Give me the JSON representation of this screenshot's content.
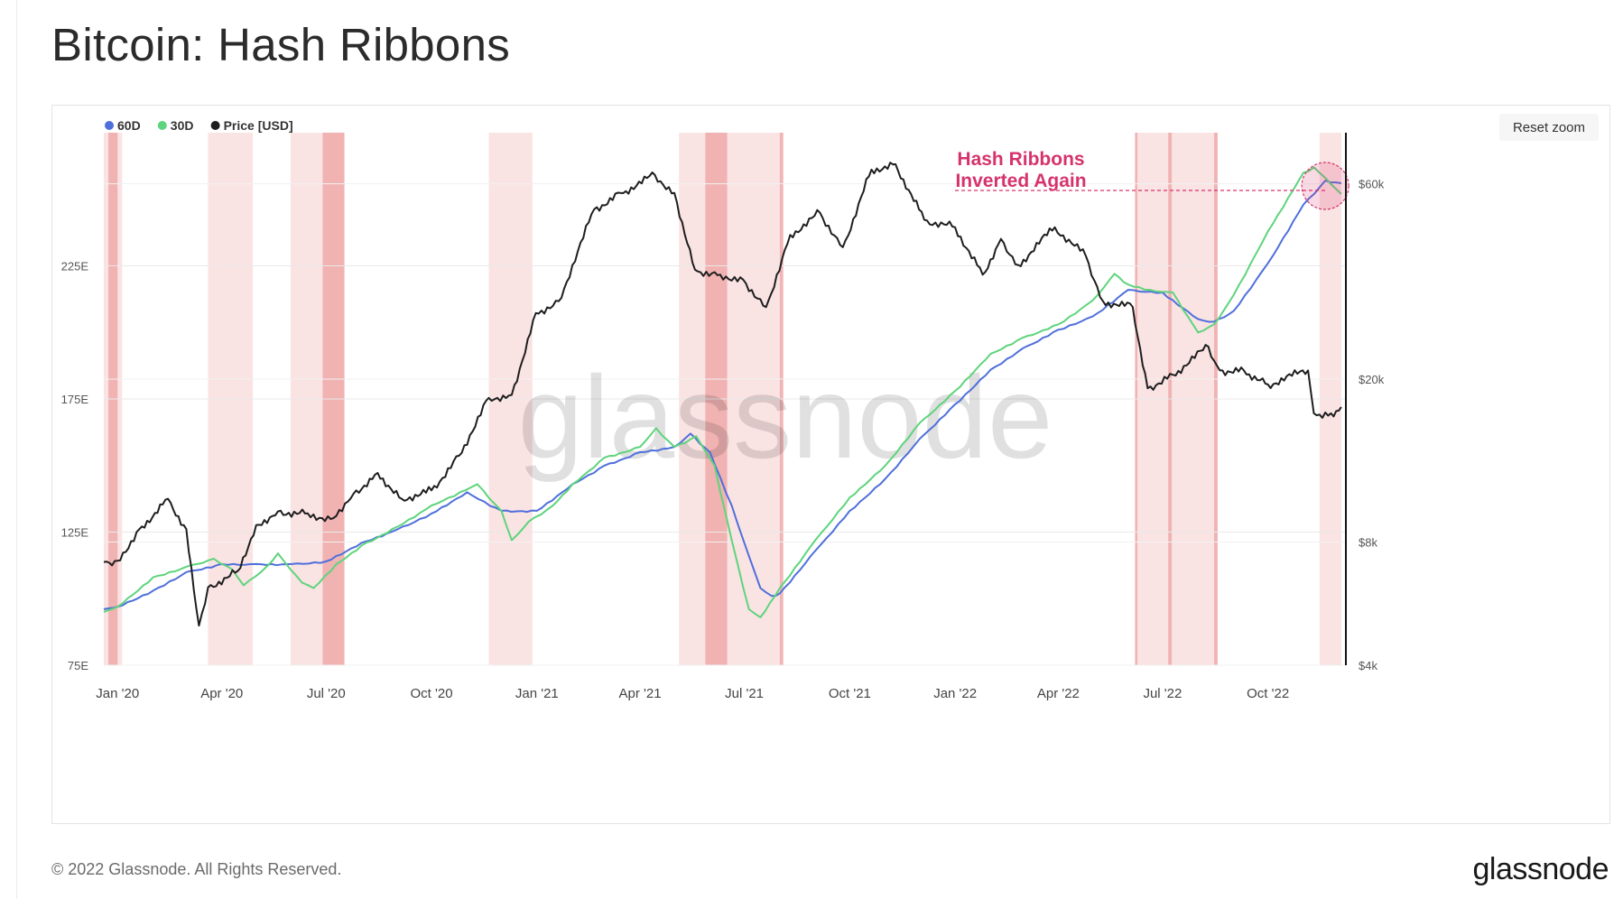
{
  "title": "Bitcoin: Hash Ribbons",
  "reset_zoom_label": "Reset zoom",
  "footer": {
    "copyright": "© 2022 Glassnode. All Rights Reserved.",
    "logo_text": "glassnode"
  },
  "watermark": "glassnode",
  "colors": {
    "series_60d": "#4f6fdb",
    "series_30d": "#5ed47c",
    "price": "#1e1e1e",
    "shading": "#f9dcdc",
    "shading_dark": "#efa9a9",
    "annotation": "#d6336c"
  },
  "chart_data": {
    "type": "line",
    "legend": {
      "placement": "top-left",
      "items": [
        {
          "label": "60D",
          "color": "#4f6fdb"
        },
        {
          "label": "30D",
          "color": "#5ed47c"
        },
        {
          "label": "Price [USD]",
          "color": "#1e1e1e"
        }
      ]
    },
    "x_ticks": [
      "Jan '20",
      "Apr '20",
      "Jul '20",
      "Oct '20",
      "Jan '21",
      "Apr '21",
      "Jul '21",
      "Oct '21",
      "Jan '22",
      "Apr '22",
      "Jul '22",
      "Oct '22"
    ],
    "x_range": [
      "2019-12-20",
      "2022-12-08"
    ],
    "y_left": {
      "ticks": [
        "75E",
        "125E",
        "175E",
        "225E"
      ],
      "values": [
        75,
        125,
        175,
        225
      ],
      "range": [
        75,
        275
      ],
      "unit": "EH/s"
    },
    "y_right": {
      "scale": "log",
      "ticks": [
        "$4k",
        "$8k",
        "$20k",
        "$60k"
      ],
      "values": [
        4000,
        8000,
        20000,
        60000
      ],
      "range": [
        4000,
        80000
      ]
    },
    "annotation": {
      "text_line1": "Hash Ribbons",
      "text_line2": "Inverted Again",
      "date": "2022-11-20",
      "value": 255
    },
    "capitulation_periods": [
      {
        "start": "2019-12-20",
        "end": "2020-01-05",
        "dark": false
      },
      {
        "start": "2019-12-24",
        "end": "2020-01-01",
        "dark": true
      },
      {
        "start": "2020-03-20",
        "end": "2020-04-28",
        "dark": false
      },
      {
        "start": "2020-05-31",
        "end": "2020-07-17",
        "dark": false
      },
      {
        "start": "2020-06-28",
        "end": "2020-07-17",
        "dark": true
      },
      {
        "start": "2020-11-20",
        "end": "2020-12-28",
        "dark": false
      },
      {
        "start": "2021-05-05",
        "end": "2021-08-02",
        "dark": false
      },
      {
        "start": "2021-05-28",
        "end": "2021-06-16",
        "dark": true
      },
      {
        "start": "2021-08-01",
        "end": "2021-08-04",
        "dark": true
      },
      {
        "start": "2022-06-07",
        "end": "2022-08-18",
        "dark": false
      },
      {
        "start": "2022-06-07",
        "end": "2022-06-09",
        "dark": true
      },
      {
        "start": "2022-07-06",
        "end": "2022-07-09",
        "dark": true
      },
      {
        "start": "2022-08-15",
        "end": "2022-08-18",
        "dark": true
      },
      {
        "start": "2022-11-15",
        "end": "2022-12-04",
        "dark": false
      }
    ],
    "series": [
      {
        "name": "60D",
        "axis": "left",
        "points": [
          [
            "2019-12-20",
            96
          ],
          [
            "2020-01-01",
            97
          ],
          [
            "2020-02-01",
            103
          ],
          [
            "2020-03-01",
            110
          ],
          [
            "2020-04-01",
            113
          ],
          [
            "2020-05-01",
            113
          ],
          [
            "2020-06-01",
            113
          ],
          [
            "2020-07-01",
            114
          ],
          [
            "2020-08-01",
            121
          ],
          [
            "2020-09-01",
            126
          ],
          [
            "2020-10-01",
            132
          ],
          [
            "2020-11-01",
            140
          ],
          [
            "2020-12-01",
            133
          ],
          [
            "2021-01-01",
            133
          ],
          [
            "2021-02-01",
            143
          ],
          [
            "2021-03-01",
            150
          ],
          [
            "2021-04-01",
            155
          ],
          [
            "2021-05-01",
            157
          ],
          [
            "2021-05-15",
            162
          ],
          [
            "2021-06-01",
            155
          ],
          [
            "2021-06-20",
            135
          ],
          [
            "2021-07-05",
            116
          ],
          [
            "2021-07-15",
            104
          ],
          [
            "2021-07-25",
            101
          ],
          [
            "2021-08-01",
            102
          ],
          [
            "2021-09-01",
            118
          ],
          [
            "2021-10-01",
            133
          ],
          [
            "2021-11-01",
            145
          ],
          [
            "2021-12-01",
            160
          ],
          [
            "2022-01-01",
            173
          ],
          [
            "2022-02-01",
            186
          ],
          [
            "2022-03-01",
            194
          ],
          [
            "2022-04-01",
            201
          ],
          [
            "2022-05-01",
            206
          ],
          [
            "2022-06-01",
            216
          ],
          [
            "2022-07-01",
            215
          ],
          [
            "2022-08-01",
            205
          ],
          [
            "2022-08-15",
            204
          ],
          [
            "2022-09-01",
            208
          ],
          [
            "2022-10-01",
            226
          ],
          [
            "2022-11-01",
            248
          ],
          [
            "2022-11-20",
            257
          ],
          [
            "2022-12-04",
            256
          ]
        ]
      },
      {
        "name": "30D",
        "axis": "left",
        "points": [
          [
            "2019-12-20",
            95
          ],
          [
            "2020-01-01",
            97
          ],
          [
            "2020-02-01",
            108
          ],
          [
            "2020-03-01",
            112
          ],
          [
            "2020-03-25",
            115
          ],
          [
            "2020-04-10",
            111
          ],
          [
            "2020-04-20",
            105
          ],
          [
            "2020-05-10",
            112
          ],
          [
            "2020-05-20",
            117
          ],
          [
            "2020-06-10",
            106
          ],
          [
            "2020-06-20",
            104
          ],
          [
            "2020-07-10",
            113
          ],
          [
            "2020-08-01",
            120
          ],
          [
            "2020-09-01",
            127
          ],
          [
            "2020-10-01",
            135
          ],
          [
            "2020-11-10",
            143
          ],
          [
            "2020-12-01",
            133
          ],
          [
            "2020-12-10",
            122
          ],
          [
            "2020-12-25",
            129
          ],
          [
            "2021-01-15",
            135
          ],
          [
            "2021-02-01",
            143
          ],
          [
            "2021-03-01",
            153
          ],
          [
            "2021-04-01",
            157
          ],
          [
            "2021-04-15",
            164
          ],
          [
            "2021-05-01",
            157
          ],
          [
            "2021-05-20",
            161
          ],
          [
            "2021-06-05",
            150
          ],
          [
            "2021-06-20",
            122
          ],
          [
            "2021-07-05",
            96
          ],
          [
            "2021-07-15",
            93
          ],
          [
            "2021-08-01",
            104
          ],
          [
            "2021-09-01",
            122
          ],
          [
            "2021-10-01",
            138
          ],
          [
            "2021-11-01",
            150
          ],
          [
            "2021-12-01",
            166
          ],
          [
            "2022-01-01",
            178
          ],
          [
            "2022-02-01",
            192
          ],
          [
            "2022-03-01",
            198
          ],
          [
            "2022-04-01",
            203
          ],
          [
            "2022-05-01",
            212
          ],
          [
            "2022-05-20",
            222
          ],
          [
            "2022-06-01",
            218
          ],
          [
            "2022-06-20",
            216
          ],
          [
            "2022-07-10",
            215
          ],
          [
            "2022-08-01",
            200
          ],
          [
            "2022-08-15",
            203
          ],
          [
            "2022-09-01",
            214
          ],
          [
            "2022-10-01",
            238
          ],
          [
            "2022-11-01",
            260
          ],
          [
            "2022-11-10",
            262
          ],
          [
            "2022-11-20",
            258
          ],
          [
            "2022-12-04",
            252
          ]
        ]
      },
      {
        "name": "Price [USD]",
        "axis": "right",
        "points": [
          [
            "2019-12-20",
            7150
          ],
          [
            "2020-01-01",
            7200
          ],
          [
            "2020-01-20",
            8600
          ],
          [
            "2020-02-14",
            10200
          ],
          [
            "2020-03-01",
            8600
          ],
          [
            "2020-03-12",
            5000
          ],
          [
            "2020-03-20",
            6200
          ],
          [
            "2020-04-15",
            6800
          ],
          [
            "2020-05-01",
            8800
          ],
          [
            "2020-05-20",
            9500
          ],
          [
            "2020-06-15",
            9400
          ],
          [
            "2020-07-05",
            9100
          ],
          [
            "2020-07-25",
            10500
          ],
          [
            "2020-08-15",
            11800
          ],
          [
            "2020-09-05",
            10200
          ],
          [
            "2020-10-01",
            10700
          ],
          [
            "2020-10-25",
            13000
          ],
          [
            "2020-11-20",
            18000
          ],
          [
            "2020-12-10",
            18300
          ],
          [
            "2020-12-31",
            29000
          ],
          [
            "2021-01-20",
            31000
          ],
          [
            "2021-02-20",
            52000
          ],
          [
            "2021-03-15",
            57000
          ],
          [
            "2021-04-14",
            63000
          ],
          [
            "2021-05-01",
            57000
          ],
          [
            "2021-05-19",
            37000
          ],
          [
            "2021-06-10",
            36000
          ],
          [
            "2021-06-30",
            35000
          ],
          [
            "2021-07-20",
            30000
          ],
          [
            "2021-08-10",
            45000
          ],
          [
            "2021-09-05",
            51000
          ],
          [
            "2021-09-25",
            42000
          ],
          [
            "2021-10-20",
            65000
          ],
          [
            "2021-11-10",
            67000
          ],
          [
            "2021-12-05",
            49000
          ],
          [
            "2022-01-01",
            47000
          ],
          [
            "2022-01-25",
            36000
          ],
          [
            "2022-02-10",
            44000
          ],
          [
            "2022-02-25",
            38000
          ],
          [
            "2022-03-29",
            47000
          ],
          [
            "2022-04-25",
            40000
          ],
          [
            "2022-05-10",
            31000
          ],
          [
            "2022-06-05",
            30000
          ],
          [
            "2022-06-18",
            19000
          ],
          [
            "2022-07-10",
            20500
          ],
          [
            "2022-08-10",
            24000
          ],
          [
            "2022-08-20",
            21000
          ],
          [
            "2022-09-10",
            21000
          ],
          [
            "2022-10-01",
            19400
          ],
          [
            "2022-11-05",
            21000
          ],
          [
            "2022-11-10",
            16500
          ],
          [
            "2022-11-25",
            16500
          ],
          [
            "2022-12-04",
            17100
          ]
        ]
      }
    ]
  }
}
